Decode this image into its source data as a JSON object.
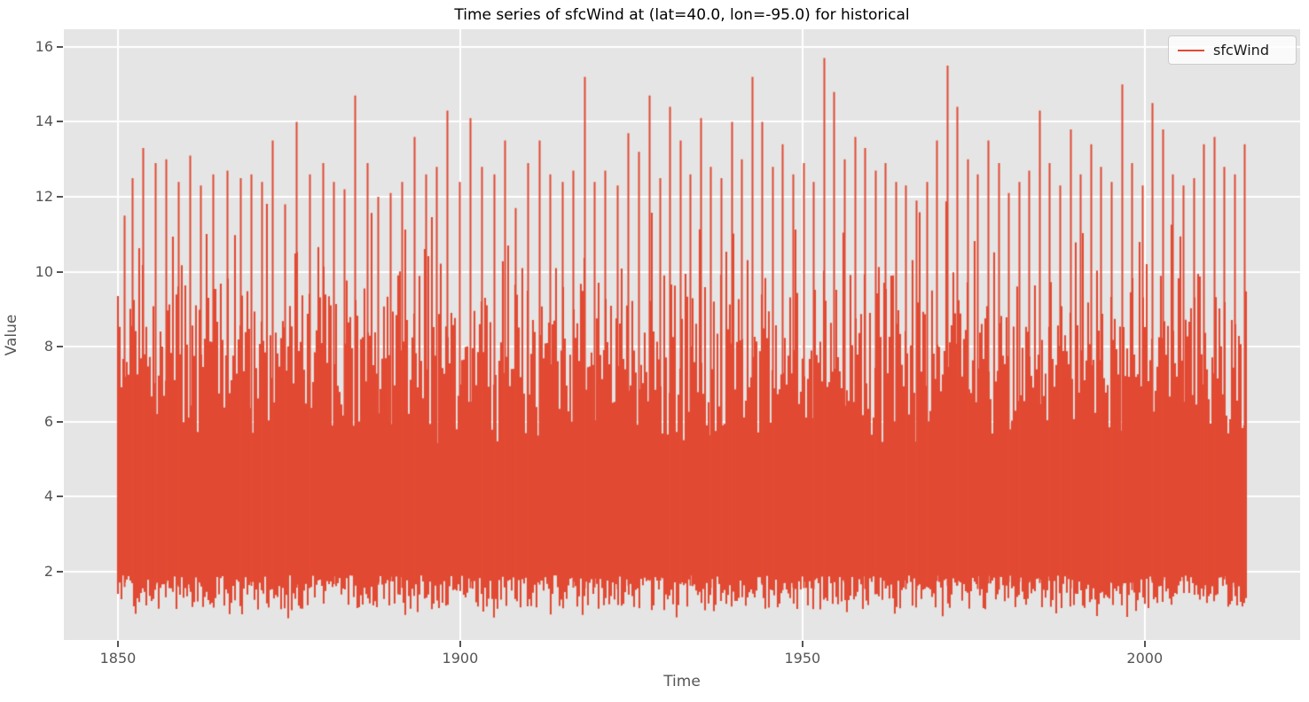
{
  "chart_data": {
    "type": "line",
    "title": "Time series of sfcWind at (lat=40.0, lon=-95.0) for historical",
    "xlabel": "Time",
    "ylabel": "Value",
    "series": [
      {
        "name": "sfcWind",
        "color": "#E24A33"
      }
    ],
    "legend_position": "upper right",
    "grid": true,
    "x_ticks": [
      1850,
      1900,
      1950,
      2000
    ],
    "y_ticks": [
      2,
      4,
      6,
      8,
      10,
      12,
      14,
      16
    ],
    "xlim": [
      1842.1,
      2022.7
    ],
    "ylim": [
      0.18,
      16.47
    ],
    "data_x_range": [
      1850.0,
      2014.95
    ],
    "envelope": {
      "typical_low_band": [
        1.0,
        1.9
      ],
      "typical_high_band": [
        6.0,
        13.5
      ],
      "abs_min": 0.75,
      "abs_max": 15.7
    },
    "noise_seed": 42,
    "annual_peak_samples": [
      [
        1850.9,
        11.5
      ],
      [
        1852.1,
        12.5
      ],
      [
        1853.6,
        13.3
      ],
      [
        1855.4,
        12.9
      ],
      [
        1857.0,
        13.0
      ],
      [
        1858.8,
        12.4
      ],
      [
        1860.5,
        13.1
      ],
      [
        1862.0,
        12.3
      ],
      [
        1863.9,
        12.6
      ],
      [
        1866.0,
        12.7
      ],
      [
        1867.9,
        12.5
      ],
      [
        1869.5,
        12.6
      ],
      [
        1871.0,
        12.4
      ],
      [
        1872.6,
        13.5
      ],
      [
        1874.4,
        11.8
      ],
      [
        1876.1,
        14.0
      ],
      [
        1878.0,
        12.6
      ],
      [
        1879.9,
        12.9
      ],
      [
        1881.5,
        12.4
      ],
      [
        1883.0,
        12.2
      ],
      [
        1884.6,
        14.7
      ],
      [
        1886.4,
        12.9
      ],
      [
        1888.0,
        12.0
      ],
      [
        1889.8,
        12.1
      ],
      [
        1891.5,
        12.4
      ],
      [
        1893.3,
        13.6
      ],
      [
        1895.0,
        12.6
      ],
      [
        1896.5,
        12.8
      ],
      [
        1898.1,
        14.3
      ],
      [
        1899.9,
        12.4
      ],
      [
        1901.5,
        14.1
      ],
      [
        1903.1,
        12.8
      ],
      [
        1904.9,
        12.6
      ],
      [
        1906.5,
        13.5
      ],
      [
        1908.1,
        11.7
      ],
      [
        1909.9,
        12.9
      ],
      [
        1911.5,
        13.5
      ],
      [
        1913.1,
        12.6
      ],
      [
        1914.9,
        12.4
      ],
      [
        1916.5,
        12.7
      ],
      [
        1918.1,
        15.2
      ],
      [
        1919.6,
        12.4
      ],
      [
        1921.1,
        12.7
      ],
      [
        1922.9,
        12.3
      ],
      [
        1924.5,
        13.7
      ],
      [
        1926.0,
        13.2
      ],
      [
        1927.6,
        14.7
      ],
      [
        1929.1,
        12.5
      ],
      [
        1930.6,
        14.4
      ],
      [
        1932.1,
        13.5
      ],
      [
        1933.6,
        12.6
      ],
      [
        1935.1,
        14.1
      ],
      [
        1936.6,
        12.8
      ],
      [
        1938.1,
        12.5
      ],
      [
        1939.6,
        14.0
      ],
      [
        1941.1,
        13.0
      ],
      [
        1942.6,
        15.2
      ],
      [
        1944.1,
        14.0
      ],
      [
        1945.6,
        12.8
      ],
      [
        1947.1,
        13.4
      ],
      [
        1948.6,
        12.6
      ],
      [
        1950.1,
        12.9
      ],
      [
        1951.6,
        12.4
      ],
      [
        1953.1,
        15.7
      ],
      [
        1954.6,
        14.8
      ],
      [
        1956.1,
        13.0
      ],
      [
        1957.6,
        13.6
      ],
      [
        1959.1,
        13.3
      ],
      [
        1960.6,
        12.7
      ],
      [
        1962.1,
        12.9
      ],
      [
        1963.6,
        12.4
      ],
      [
        1965.1,
        12.3
      ],
      [
        1966.6,
        11.9
      ],
      [
        1968.1,
        12.4
      ],
      [
        1969.6,
        13.5
      ],
      [
        1971.1,
        15.5
      ],
      [
        1972.6,
        14.4
      ],
      [
        1974.1,
        13.0
      ],
      [
        1975.6,
        12.6
      ],
      [
        1977.1,
        13.5
      ],
      [
        1978.6,
        12.9
      ],
      [
        1980.1,
        12.1
      ],
      [
        1981.6,
        12.4
      ],
      [
        1983.1,
        12.7
      ],
      [
        1984.6,
        14.3
      ],
      [
        1986.1,
        12.9
      ],
      [
        1987.6,
        12.3
      ],
      [
        1989.1,
        13.8
      ],
      [
        1990.6,
        12.6
      ],
      [
        1992.1,
        13.4
      ],
      [
        1993.6,
        12.8
      ],
      [
        1995.1,
        12.4
      ],
      [
        1996.6,
        15.0
      ],
      [
        1998.1,
        12.9
      ],
      [
        1999.6,
        12.3
      ],
      [
        2001.1,
        14.5
      ],
      [
        2002.6,
        13.8
      ],
      [
        2004.1,
        12.6
      ],
      [
        2005.6,
        12.3
      ],
      [
        2007.1,
        12.5
      ],
      [
        2008.6,
        13.4
      ],
      [
        2010.1,
        13.6
      ],
      [
        2011.6,
        12.8
      ],
      [
        2013.1,
        12.6
      ],
      [
        2014.5,
        13.4
      ]
    ],
    "style": {
      "panel_color": "#E5E5E5",
      "grid_color": "#ffffff",
      "line_color": "#E24A33",
      "tick_color": "#555555",
      "label_color": "#555555",
      "title_color": "#000000"
    }
  }
}
